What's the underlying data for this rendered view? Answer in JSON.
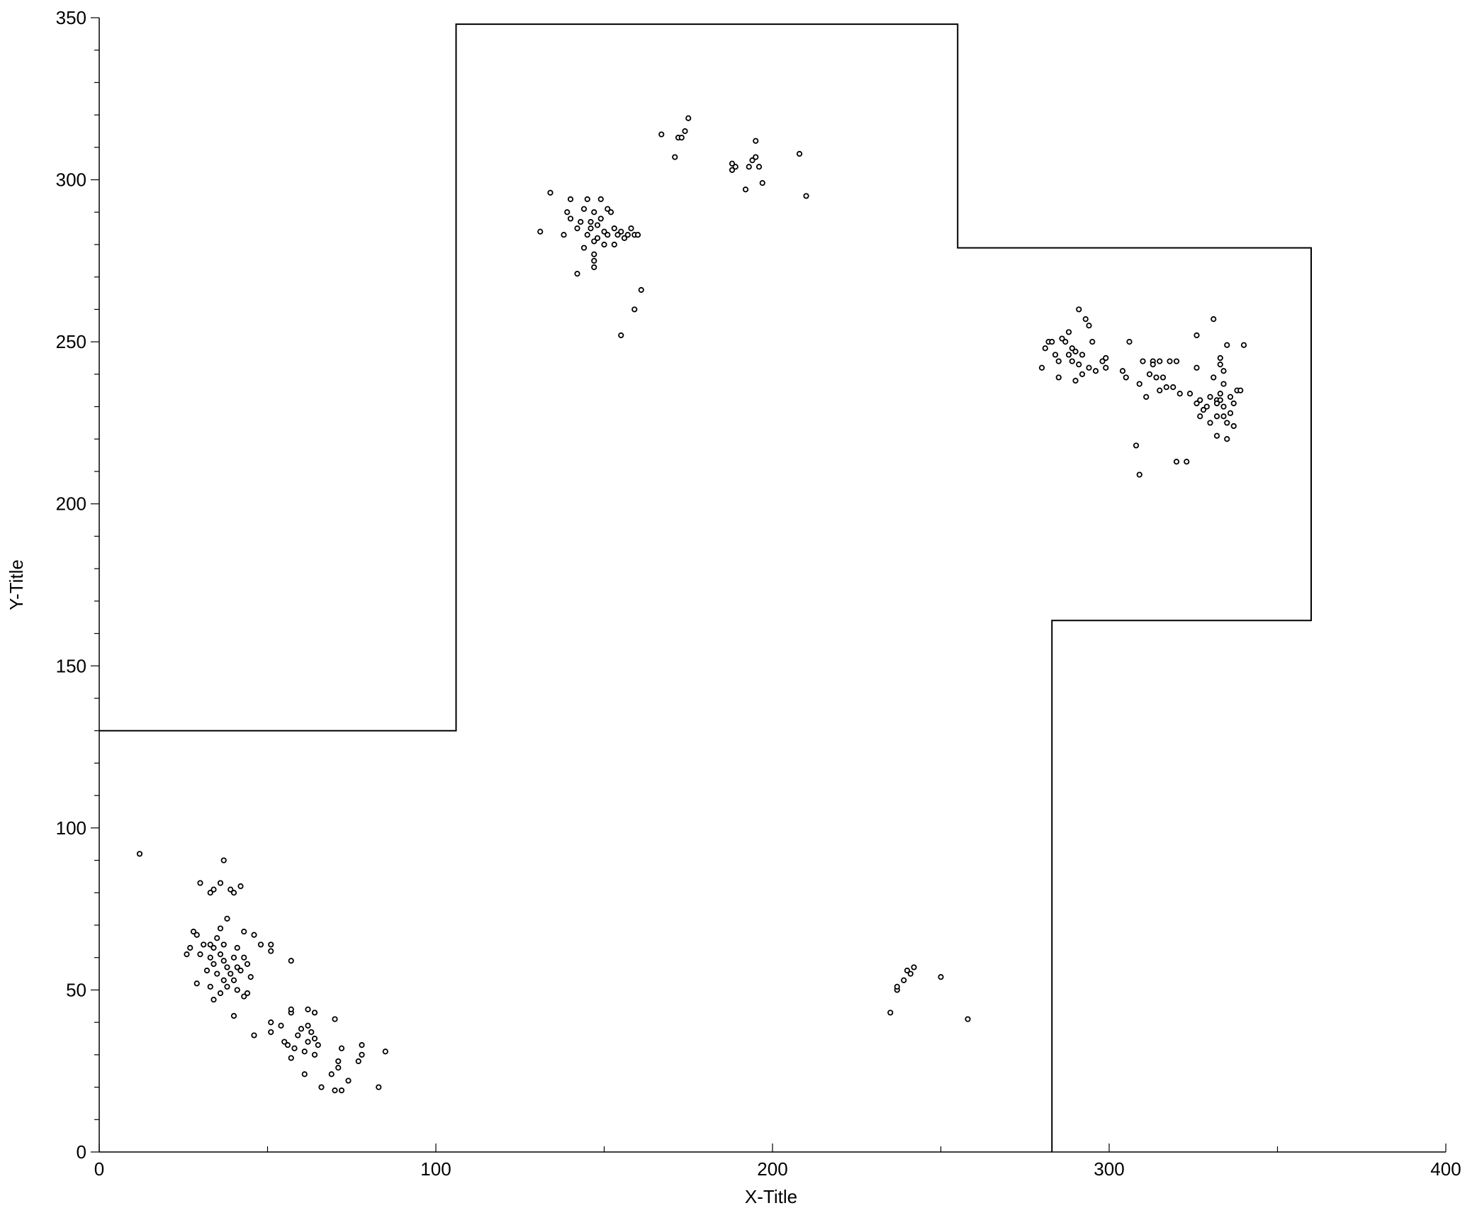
{
  "chart_data": {
    "type": "scatter",
    "title": "",
    "xlabel": "X-Title",
    "ylabel": "Y-Title",
    "xlim": [
      0,
      400
    ],
    "ylim": [
      0,
      350
    ],
    "x_ticks": [
      0,
      100,
      200,
      300,
      400
    ],
    "y_ticks": [
      0,
      50,
      100,
      150,
      200,
      250,
      300,
      350
    ],
    "x_tick_labels": [
      "0",
      "100",
      "200",
      "300",
      "400"
    ],
    "y_tick_labels": [
      "0",
      "50",
      "100",
      "150",
      "200",
      "250",
      "300",
      "350"
    ],
    "grid": false,
    "boundary_polyline": [
      [
        0,
        130
      ],
      [
        106,
        130
      ],
      [
        106,
        348
      ],
      [
        255,
        348
      ],
      [
        255,
        279
      ],
      [
        360,
        279
      ],
      [
        360,
        164
      ],
      [
        283,
        164
      ],
      [
        283,
        0
      ]
    ],
    "points": [
      [
        12,
        92
      ],
      [
        37,
        90
      ],
      [
        30,
        83
      ],
      [
        36,
        83
      ],
      [
        42,
        82
      ],
      [
        34,
        81
      ],
      [
        33,
        80
      ],
      [
        39,
        81
      ],
      [
        40,
        80
      ],
      [
        28,
        68
      ],
      [
        29,
        67
      ],
      [
        36,
        69
      ],
      [
        43,
        68
      ],
      [
        46,
        67
      ],
      [
        38,
        72
      ],
      [
        35,
        66
      ],
      [
        33,
        64
      ],
      [
        31,
        64
      ],
      [
        27,
        63
      ],
      [
        34,
        63
      ],
      [
        37,
        64
      ],
      [
        41,
        63
      ],
      [
        48,
        64
      ],
      [
        51,
        64
      ],
      [
        51,
        62
      ],
      [
        26,
        61
      ],
      [
        30,
        61
      ],
      [
        33,
        60
      ],
      [
        36,
        61
      ],
      [
        40,
        60
      ],
      [
        43,
        60
      ],
      [
        34,
        58
      ],
      [
        37,
        59
      ],
      [
        38,
        57
      ],
      [
        41,
        57
      ],
      [
        44,
        58
      ],
      [
        57,
        59
      ],
      [
        32,
        56
      ],
      [
        35,
        55
      ],
      [
        39,
        55
      ],
      [
        42,
        56
      ],
      [
        37,
        53
      ],
      [
        40,
        53
      ],
      [
        45,
        54
      ],
      [
        33,
        51
      ],
      [
        38,
        51
      ],
      [
        41,
        50
      ],
      [
        44,
        49
      ],
      [
        29,
        52
      ],
      [
        36,
        49
      ],
      [
        43,
        48
      ],
      [
        34,
        47
      ],
      [
        40,
        42
      ],
      [
        46,
        36
      ],
      [
        51,
        40
      ],
      [
        51,
        37
      ],
      [
        54,
        39
      ],
      [
        55,
        34
      ],
      [
        56,
        33
      ],
      [
        57,
        29
      ],
      [
        57,
        43
      ],
      [
        57,
        44
      ],
      [
        59,
        36
      ],
      [
        60,
        38
      ],
      [
        61,
        31
      ],
      [
        62,
        44
      ],
      [
        62,
        39
      ],
      [
        63,
        37
      ],
      [
        64,
        43
      ],
      [
        64,
        35
      ],
      [
        64,
        30
      ],
      [
        65,
        33
      ],
      [
        61,
        24
      ],
      [
        66,
        20
      ],
      [
        69,
        24
      ],
      [
        70,
        19
      ],
      [
        72,
        19
      ],
      [
        71,
        26
      ],
      [
        71,
        28
      ],
      [
        72,
        32
      ],
      [
        74,
        22
      ],
      [
        70,
        41
      ],
      [
        77,
        28
      ],
      [
        78,
        30
      ],
      [
        78,
        33
      ],
      [
        83,
        20
      ],
      [
        85,
        31
      ],
      [
        62,
        34
      ],
      [
        58,
        32
      ],
      [
        131,
        284
      ],
      [
        134,
        296
      ],
      [
        138,
        283
      ],
      [
        139,
        290
      ],
      [
        140,
        288
      ],
      [
        140,
        294
      ],
      [
        142,
        285
      ],
      [
        143,
        287
      ],
      [
        144,
        279
      ],
      [
        144,
        291
      ],
      [
        145,
        294
      ],
      [
        145,
        283
      ],
      [
        146,
        285
      ],
      [
        146,
        287
      ],
      [
        147,
        281
      ],
      [
        147,
        290
      ],
      [
        148,
        286
      ],
      [
        148,
        282
      ],
      [
        149,
        294
      ],
      [
        149,
        288
      ],
      [
        150,
        280
      ],
      [
        150,
        284
      ],
      [
        151,
        283
      ],
      [
        151,
        291
      ],
      [
        152,
        290
      ],
      [
        153,
        285
      ],
      [
        153,
        280
      ],
      [
        154,
        283
      ],
      [
        155,
        284
      ],
      [
        156,
        282
      ],
      [
        157,
        283
      ],
      [
        158,
        285
      ],
      [
        159,
        283
      ],
      [
        160,
        283
      ],
      [
        147,
        277
      ],
      [
        147,
        275
      ],
      [
        147,
        273
      ],
      [
        142,
        271
      ],
      [
        159,
        260
      ],
      [
        161,
        266
      ],
      [
        155,
        252
      ],
      [
        167,
        314
      ],
      [
        171,
        307
      ],
      [
        172,
        313
      ],
      [
        173,
        313
      ],
      [
        174,
        315
      ],
      [
        175,
        319
      ],
      [
        188,
        303
      ],
      [
        188,
        305
      ],
      [
        189,
        304
      ],
      [
        192,
        297
      ],
      [
        193,
        304
      ],
      [
        194,
        306
      ],
      [
        195,
        307
      ],
      [
        195,
        312
      ],
      [
        196,
        304
      ],
      [
        197,
        299
      ],
      [
        208,
        308
      ],
      [
        210,
        295
      ],
      [
        235,
        43
      ],
      [
        237,
        50
      ],
      [
        237,
        51
      ],
      [
        239,
        53
      ],
      [
        240,
        56
      ],
      [
        241,
        55
      ],
      [
        242,
        57
      ],
      [
        250,
        54
      ],
      [
        258,
        41
      ],
      [
        280,
        242
      ],
      [
        281,
        248
      ],
      [
        282,
        250
      ],
      [
        283,
        250
      ],
      [
        284,
        246
      ],
      [
        285,
        244
      ],
      [
        285,
        239
      ],
      [
        286,
        251
      ],
      [
        287,
        250
      ],
      [
        288,
        253
      ],
      [
        288,
        246
      ],
      [
        289,
        248
      ],
      [
        289,
        244
      ],
      [
        290,
        238
      ],
      [
        290,
        247
      ],
      [
        291,
        243
      ],
      [
        291,
        260
      ],
      [
        292,
        246
      ],
      [
        292,
        240
      ],
      [
        293,
        257
      ],
      [
        294,
        255
      ],
      [
        294,
        242
      ],
      [
        295,
        250
      ],
      [
        296,
        241
      ],
      [
        298,
        244
      ],
      [
        299,
        242
      ],
      [
        299,
        245
      ],
      [
        304,
        241
      ],
      [
        305,
        239
      ],
      [
        306,
        250
      ],
      [
        308,
        218
      ],
      [
        309,
        209
      ],
      [
        309,
        237
      ],
      [
        310,
        244
      ],
      [
        311,
        233
      ],
      [
        312,
        240
      ],
      [
        313,
        244
      ],
      [
        313,
        243
      ],
      [
        314,
        239
      ],
      [
        315,
        235
      ],
      [
        315,
        244
      ],
      [
        316,
        239
      ],
      [
        317,
        236
      ],
      [
        318,
        244
      ],
      [
        319,
        236
      ],
      [
        320,
        244
      ],
      [
        320,
        213
      ],
      [
        321,
        234
      ],
      [
        323,
        213
      ],
      [
        324,
        234
      ],
      [
        326,
        252
      ],
      [
        326,
        242
      ],
      [
        326,
        231
      ],
      [
        327,
        232
      ],
      [
        327,
        227
      ],
      [
        328,
        229
      ],
      [
        329,
        230
      ],
      [
        330,
        225
      ],
      [
        330,
        233
      ],
      [
        331,
        239
      ],
      [
        331,
        257
      ],
      [
        332,
        232
      ],
      [
        332,
        227
      ],
      [
        332,
        221
      ],
      [
        333,
        232
      ],
      [
        333,
        234
      ],
      [
        333,
        243
      ],
      [
        333,
        245
      ],
      [
        334,
        227
      ],
      [
        334,
        241
      ],
      [
        334,
        230
      ],
      [
        335,
        225
      ],
      [
        335,
        220
      ],
      [
        335,
        249
      ],
      [
        336,
        228
      ],
      [
        336,
        233
      ],
      [
        337,
        231
      ],
      [
        337,
        224
      ],
      [
        338,
        235
      ],
      [
        339,
        235
      ],
      [
        340,
        249
      ],
      [
        332,
        231
      ],
      [
        334,
        237
      ]
    ]
  }
}
